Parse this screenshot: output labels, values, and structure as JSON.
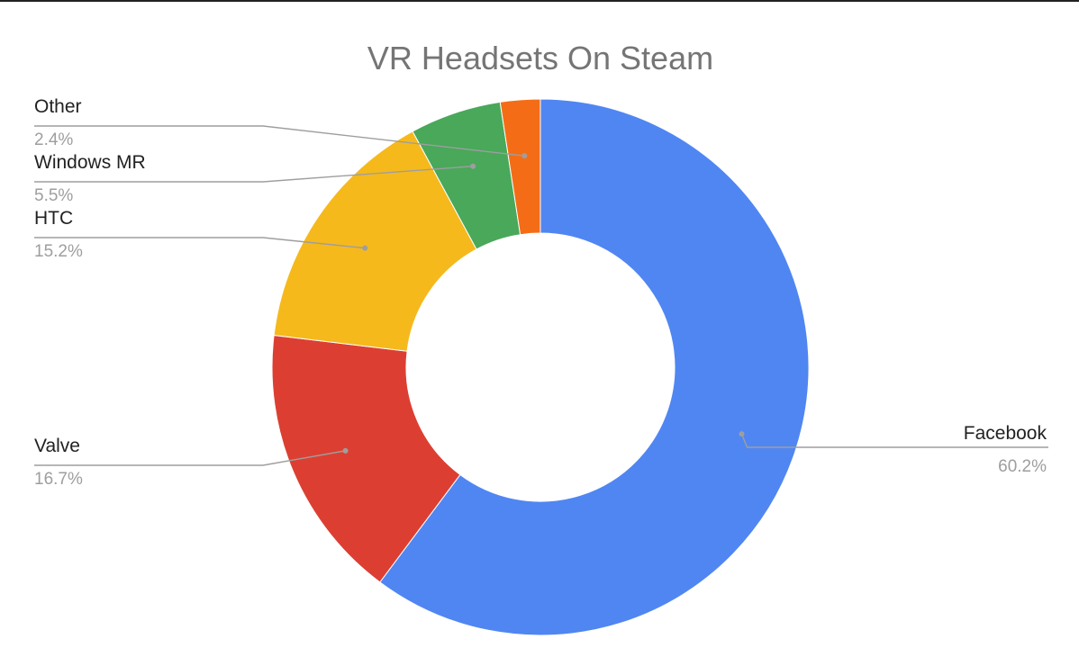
{
  "chart_data": {
    "type": "pie",
    "variant": "donut",
    "title": "VR Headsets On Steam",
    "series": [
      {
        "name": "Facebook",
        "value": 60.2,
        "label": "60.2%",
        "color": "#5086f2"
      },
      {
        "name": "Valve",
        "value": 16.7,
        "label": "16.7%",
        "color": "#dc3f32"
      },
      {
        "name": "HTC",
        "value": 15.2,
        "label": "15.2%",
        "color": "#f5b91c"
      },
      {
        "name": "Windows MR",
        "value": 5.5,
        "label": "5.5%",
        "color": "#49a85a"
      },
      {
        "name": "Other",
        "value": 2.4,
        "label": "2.4%",
        "color": "#f46d16"
      }
    ],
    "start_angle": "12 o'clock",
    "direction": "clockwise",
    "legend": "callout labels"
  }
}
